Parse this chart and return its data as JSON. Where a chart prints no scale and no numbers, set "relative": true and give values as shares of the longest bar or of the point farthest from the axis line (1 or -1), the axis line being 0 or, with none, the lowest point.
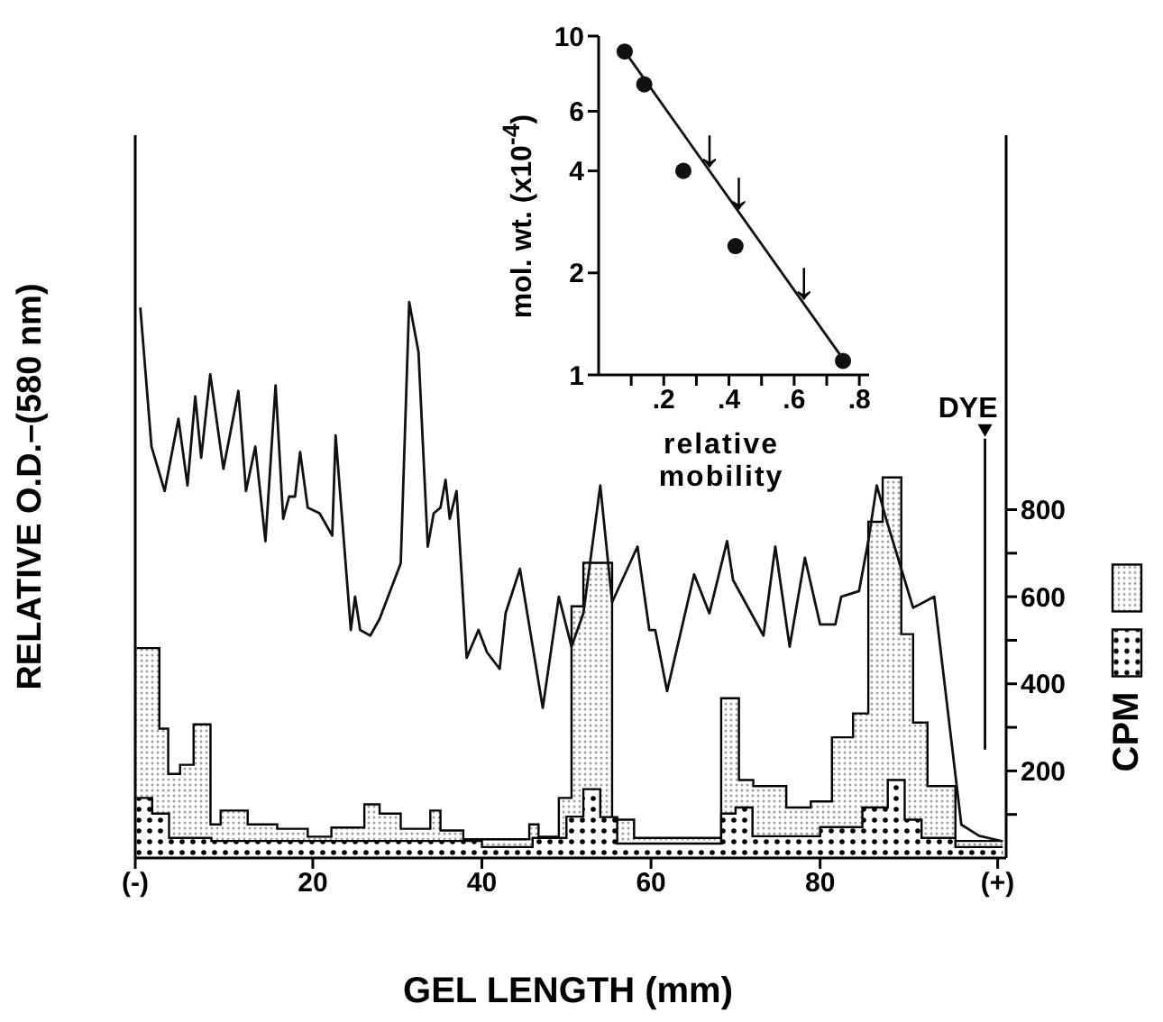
{
  "chart_data": [
    {
      "type": "area",
      "xlabel": "GEL LENGTH (mm)",
      "y2label": "CPM",
      "xlim": [
        -1,
        102
      ],
      "xticks": [
        {
          "value": -1,
          "label": "(-)"
        },
        20,
        40,
        60,
        80,
        {
          "value": 101,
          "label": "(+)"
        }
      ],
      "y2lim": [
        0,
        1660
      ],
      "y2ticks": [
        {
          "value": 100,
          "label": null
        },
        200,
        {
          "value": 300,
          "label": null
        },
        400,
        {
          "value": 500,
          "label": null
        },
        600,
        {
          "value": 700,
          "label": null
        },
        800
      ],
      "ref_lines": [
        {
          "axis": "x",
          "value": 99.5,
          "label": "DYE"
        }
      ],
      "series": [
        {
          "axis": "y2",
          "color": "#9e9e9e",
          "x": [
            -0.85,
            1.85,
            1.85,
            2.9,
            2.9,
            4.3,
            4.3,
            5.9,
            5.9,
            7.9,
            7.9,
            9.1,
            9.1,
            12.3,
            12.3,
            15.8,
            15.8,
            19.4,
            19.4,
            22.2,
            22.2,
            26.1,
            26.1,
            27.9,
            27.9,
            30.4,
            30.4,
            33.9,
            33.9,
            35.1,
            35.1,
            37.8,
            37.8,
            45.6,
            45.6,
            46.7,
            46.7,
            49.1,
            49.1,
            50.6,
            50.6,
            52.0,
            52.0,
            55.4,
            55.4,
            58.0,
            58.0,
            68.3,
            68.3,
            70.4,
            70.4,
            72.1,
            72.1,
            76.0,
            76.0,
            78.9,
            78.9,
            81.4,
            81.4,
            83.9,
            83.9,
            85.7,
            85.7,
            87.4,
            87.4,
            89.6,
            89.6,
            91.0,
            91.0,
            92.7,
            92.7,
            96.0,
            96.0,
            101.6
          ],
          "values": [
            482,
            482,
            297,
            297,
            193,
            193,
            214,
            214,
            307,
            307,
            77,
            77,
            109,
            109,
            77,
            77,
            67,
            67,
            49,
            49,
            70,
            70,
            123,
            123,
            102,
            102,
            67,
            67,
            109,
            109,
            63,
            63,
            43,
            43,
            77,
            77,
            49,
            49,
            138,
            138,
            578,
            578,
            678,
            678,
            88,
            88,
            46,
            46,
            367,
            367,
            179,
            179,
            165,
            165,
            116,
            116,
            130,
            130,
            277,
            277,
            332,
            332,
            772,
            772,
            874,
            874,
            514,
            514,
            311,
            311,
            165,
            165,
            39,
            39
          ]
        },
        {
          "axis": "y2",
          "color": "#000000",
          "x": [
            -0.85,
            1.0,
            1.0,
            3.0,
            3.0,
            8.0,
            8.0,
            40.0,
            40.0,
            46.0,
            46.0,
            50.0,
            50.0,
            52.0,
            52.0,
            54.0,
            54.0,
            56.0,
            56.0,
            68.3,
            68.3,
            70.0,
            70.0,
            72.0,
            72.0,
            80.0,
            80.0,
            85.0,
            85.0,
            88.0,
            88.0,
            90.0,
            90.0,
            92.0,
            92.0,
            96.0,
            96.0,
            101.6
          ],
          "values": [
            138,
            138,
            102,
            102,
            46,
            46,
            39,
            39,
            25,
            25,
            46,
            46,
            95,
            95,
            158,
            158,
            94,
            94,
            33,
            33,
            102,
            102,
            116,
            116,
            50,
            50,
            71,
            71,
            116,
            116,
            179,
            179,
            88,
            88,
            46,
            46,
            25,
            25
          ]
        }
      ]
    },
    {
      "type": "line",
      "ylabel": "RELATIVE O.D.–(580 nm)",
      "relative": true,
      "tick_labels": false,
      "xlim": [
        -1,
        102
      ],
      "series": [
        {
          "color": "#111111",
          "x": [
            -0.4,
            0.92,
            2.48,
            4.11,
            5.18,
            6.1,
            6.8,
            7.87,
            9.43,
            11.2,
            12.1,
            13.2,
            14.4,
            15.6,
            16.5,
            17.2,
            17.9,
            18.5,
            19.4,
            20.8,
            22.3,
            22.7,
            24.5,
            25.0,
            25.6,
            26.8,
            27.9,
            30.4,
            31.4,
            32.5,
            33.6,
            34.3,
            35.1,
            35.7,
            36.2,
            37.0,
            38.2,
            39.6,
            40.6,
            42.1,
            42.8,
            44.5,
            47.2,
            49.1,
            50.6,
            52.0,
            54.0,
            55.4,
            58.4,
            59.8,
            60.5,
            61.9,
            65.1,
            66.9,
            69.0,
            69.7,
            73.3,
            74.7,
            76.4,
            78.2,
            80.0,
            81.8,
            82.5,
            84.6,
            85.7,
            86.7,
            87.8,
            89.6,
            91.0,
            93.5,
            96.7,
            98.8,
            101.6
          ],
          "values": [
            0.99,
            0.74,
            0.66,
            0.79,
            0.67,
            0.83,
            0.72,
            0.87,
            0.7,
            0.84,
            0.66,
            0.74,
            0.57,
            0.85,
            0.61,
            0.65,
            0.65,
            0.73,
            0.63,
            0.62,
            0.58,
            0.76,
            0.41,
            0.47,
            0.41,
            0.4,
            0.43,
            0.53,
            1,
            0.91,
            0.56,
            0.62,
            0.63,
            0.68,
            0.61,
            0.66,
            0.36,
            0.41,
            0.37,
            0.34,
            0.44,
            0.52,
            0.27,
            0.47,
            0.38,
            0.44,
            0.67,
            0.46,
            0.56,
            0.41,
            0.41,
            0.3,
            0.51,
            0.44,
            0.57,
            0.5,
            0.4,
            0.56,
            0.38,
            0.54,
            0.42,
            0.42,
            0.47,
            0.48,
            0.57,
            0.67,
            0.61,
            0.52,
            0.45,
            0.47,
            0.06,
            0.04,
            0.03
          ]
        }
      ]
    },
    {
      "type": "scatter",
      "xlabel": "relative mobility",
      "ylabel": "mol. wt. (x10$^{-4}$)",
      "log": "y",
      "xlim": [
        0,
        0.83
      ],
      "xticks": [
        {
          "value": 0.1,
          "label": null
        },
        {
          "value": 0.2,
          "label": ".2"
        },
        {
          "value": 0.3,
          "label": null
        },
        {
          "value": 0.4,
          "label": ".4"
        },
        {
          "value": 0.5,
          "label": null
        },
        {
          "value": 0.6,
          "label": ".6"
        },
        {
          "value": 0.7,
          "label": null
        },
        {
          "value": 0.8,
          "label": ".8"
        }
      ],
      "ylim": [
        1,
        10
      ],
      "yticks": [
        1,
        2,
        4,
        6,
        10
      ],
      "annotations": [
        {
          "text": "↓",
          "x": 0.34,
          "y": 4.0
        },
        {
          "text": "↓",
          "x": 0.43,
          "y": 3.0
        },
        {
          "text": "↓",
          "x": 0.63,
          "y": 1.62
        }
      ],
      "series": [
        {
          "color": "#111111",
          "marker": "circle",
          "x": [
            0.08,
            0.14,
            0.26,
            0.42,
            0.75
          ],
          "values": [
            9.0,
            7.2,
            4.0,
            2.4,
            1.1
          ]
        },
        {
          "type": "line",
          "color": "#111111",
          "marker": "none",
          "x": [
            0.07,
            0.76
          ],
          "values": [
            9.3,
            1.08
          ]
        }
      ]
    }
  ]
}
